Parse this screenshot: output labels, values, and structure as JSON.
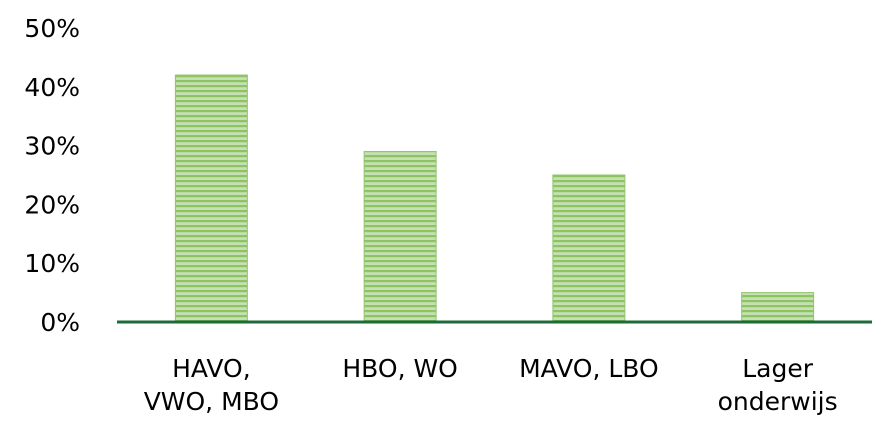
{
  "chart_data": {
    "type": "bar",
    "categories": [
      [
        "HAVO,",
        "VWO, MBO"
      ],
      [
        "HBO, WO"
      ],
      [
        "MAVO, LBO"
      ],
      [
        "Lager",
        "onderwijs"
      ]
    ],
    "values": [
      42,
      29,
      25,
      5
    ],
    "ylim": [
      0,
      50
    ],
    "yticks": [
      0,
      10,
      20,
      30,
      40,
      50
    ],
    "ytick_labels": [
      "0%",
      "10%",
      "20%",
      "30%",
      "40%",
      "50%"
    ],
    "grid": false,
    "legend": false,
    "bar_fill": "horizontal green stripes",
    "colors": {
      "bar_light": "#c6e0b4",
      "bar_stripe": "#8dc462",
      "bar_edge": "#92c56e",
      "axis": "#1e6b3a"
    }
  }
}
